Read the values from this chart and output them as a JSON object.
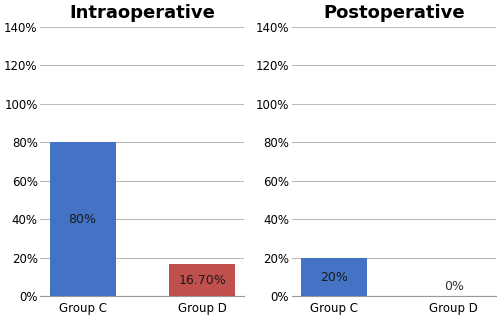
{
  "intraoperative": {
    "title": "Intraoperative",
    "categories": [
      "Group C",
      "Group D"
    ],
    "values": [
      0.8,
      0.167
    ],
    "labels": [
      "80%",
      "16.70%"
    ],
    "bar_colors": [
      "#4472C4",
      "#C0504D"
    ]
  },
  "postoperative": {
    "title": "Postoperative",
    "categories": [
      "Group C",
      "Group D"
    ],
    "values": [
      0.2,
      0.0
    ],
    "labels": [
      "20%",
      "0%"
    ],
    "bar_colors": [
      "#4472C4",
      "#4472C4"
    ]
  },
  "ylim": [
    0,
    1.4
  ],
  "yticks": [
    0,
    0.2,
    0.4,
    0.6,
    0.8,
    1.0,
    1.2,
    1.4
  ],
  "ytick_labels": [
    "0%",
    "20%",
    "40%",
    "60%",
    "80%",
    "100%",
    "120%",
    "140%"
  ],
  "background_color": "#FFFFFF",
  "grid_color": "#BBBBBB",
  "title_fontsize": 13,
  "label_fontsize": 9,
  "tick_fontsize": 8.5
}
